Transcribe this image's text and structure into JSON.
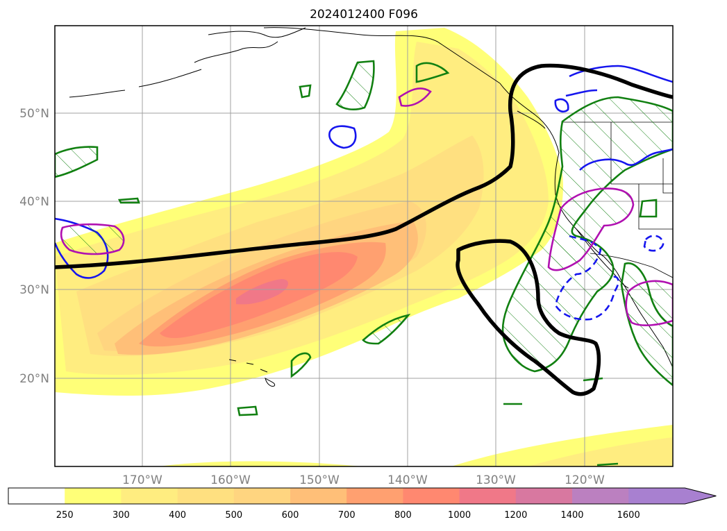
{
  "title": "2024012400 F096",
  "map": {
    "lat_labels": [
      "50°N",
      "40°N",
      "30°N",
      "20°N"
    ],
    "lon_labels": [
      "170°W",
      "160°W",
      "150°W",
      "140°W",
      "130°W",
      "120°W"
    ],
    "gridlines": true
  },
  "colorbar": {
    "levels": [
      "250",
      "300",
      "400",
      "500",
      "600",
      "700",
      "800",
      "1000",
      "1200",
      "1400",
      "1600"
    ],
    "colors": [
      "#ffffff",
      "#ffff78",
      "#ffed80",
      "#ffe080",
      "#ffd580",
      "#ffbf78",
      "#ffa070",
      "#ff8870",
      "#f07888",
      "#d878a0",
      "#bb80c0",
      "#a880d0"
    ],
    "extend": "max"
  },
  "contour_colors": {
    "black": "#000000",
    "green": "#118011",
    "blue": "#1515ee",
    "magenta": "#b010b0"
  }
}
